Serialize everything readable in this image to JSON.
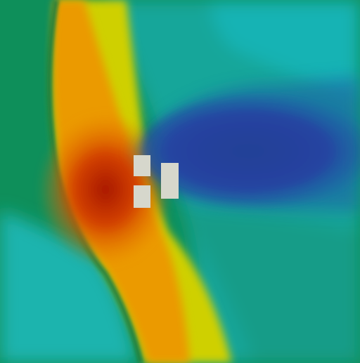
{
  "visualization": {
    "kind": "cfd-pressure-contour",
    "colormap": [
      "#0a8a52",
      "#12a38a",
      "#17b3b0",
      "#8ed13a",
      "#d9d000",
      "#f0a000",
      "#e06010",
      "#b22000",
      "#2a1d7a",
      "#3a2aa0",
      "#1c4fa8"
    ],
    "background_color": "#0e8f5a",
    "obstacle_color": "#d6d7cc",
    "obstacles": [
      {
        "label": "upper-left-block"
      },
      {
        "label": "lower-left-block"
      },
      {
        "label": "right-block"
      }
    ]
  }
}
